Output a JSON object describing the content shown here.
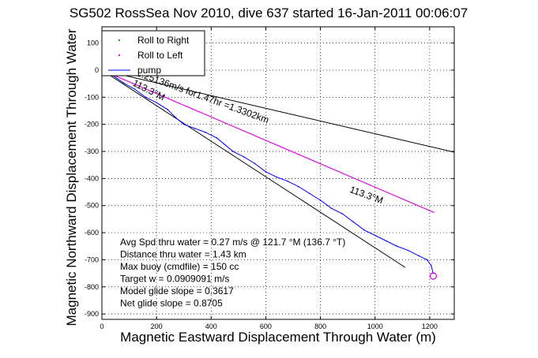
{
  "chart_data": {
    "type": "line",
    "title": "SG502 RossSea Nov 2010, dive 637 started 16-Jan-2011 00:06:07",
    "xlabel": "Magnetic Eastward Displacement Through Water (m)",
    "ylabel": "Magnetic Northward Displacement Through Water",
    "xlim": [
      0,
      1290
    ],
    "ylim": [
      -920,
      160
    ],
    "xticks": [
      0,
      200,
      400,
      600,
      800,
      1000,
      1200
    ],
    "yticks": [
      100,
      0,
      -100,
      -200,
      -300,
      -400,
      -500,
      -600,
      -700,
      -800,
      -900
    ],
    "xtick_labels": [
      "0",
      "200",
      "400",
      "600",
      "800",
      "1000",
      "1200"
    ],
    "ytick_labels": [
      "100",
      "0",
      "-100",
      "-200",
      "-300",
      "-400",
      "-500",
      "-600",
      "-700",
      "-800",
      "-900"
    ],
    "grid": true,
    "legend": {
      "placement": "top-left",
      "entries": [
        {
          "name": "Roll to Right",
          "color": "#00aa00",
          "marker": "point"
        },
        {
          "name": "Roll to Left",
          "color": "#ff00ff",
          "marker": "point"
        },
        {
          "name": "pump",
          "color": "#0000ff",
          "marker": "line"
        }
      ]
    },
    "series": [
      {
        "name": "track",
        "color": "#0000ff",
        "x": [
          0,
          40,
          80,
          120,
          160,
          200,
          240,
          270,
          300,
          340,
          380,
          420,
          450,
          480,
          520,
          560,
          600,
          640,
          680,
          720,
          760,
          800,
          840,
          880,
          920,
          960,
          1000,
          1040,
          1080,
          1120,
          1160,
          1190,
          1205,
          1213
        ],
        "y": [
          0,
          -20,
          -48,
          -70,
          -100,
          -120,
          -145,
          -175,
          -200,
          -215,
          -230,
          -250,
          -275,
          -300,
          -320,
          -345,
          -375,
          -395,
          -410,
          -430,
          -455,
          -480,
          -510,
          -530,
          -560,
          -590,
          -610,
          -630,
          -650,
          -665,
          -685,
          -700,
          -720,
          -750
        ]
      },
      {
        "name": "intended heading line",
        "color": "#ff00ff",
        "x": [
          0,
          1215
        ],
        "y": [
          0,
          -525
        ]
      }
    ],
    "reference_lines": [
      {
        "color": "#000000",
        "x": [
          0,
          1290
        ],
        "y": [
          0,
          -303
        ]
      },
      {
        "color": "#000000",
        "x": [
          0,
          1110
        ],
        "y": [
          0,
          -728
        ]
      },
      {
        "color": "#000000",
        "x": [
          0,
          1215
        ],
        "y": [
          0,
          -525
        ]
      }
    ],
    "end_marker": {
      "x": 1213,
      "y": -760,
      "color": "#cc00cc"
    },
    "annotations": [
      {
        "text": "0.25136m/s for1.47hr =1.3302km",
        "x": 125,
        "y": -20,
        "angle": 20
      },
      {
        "text": "113.3°M",
        "x": 110,
        "y": -55,
        "angle": 27
      },
      {
        "text": "113.3°M",
        "x": 905,
        "y": -450,
        "angle": 20
      }
    ],
    "stats": [
      "Avg Spd thru water =  0.27 m/s @ 121.7   °M (136.7 °T)",
      "Distance thru water =  1.43 km",
      "Max buoy (cmdfile) = 150 cc",
      "Target w = 0.0909091 m/s",
      "Model glide slope = 0.3617",
      "Net glide slope = 0.8705"
    ]
  }
}
